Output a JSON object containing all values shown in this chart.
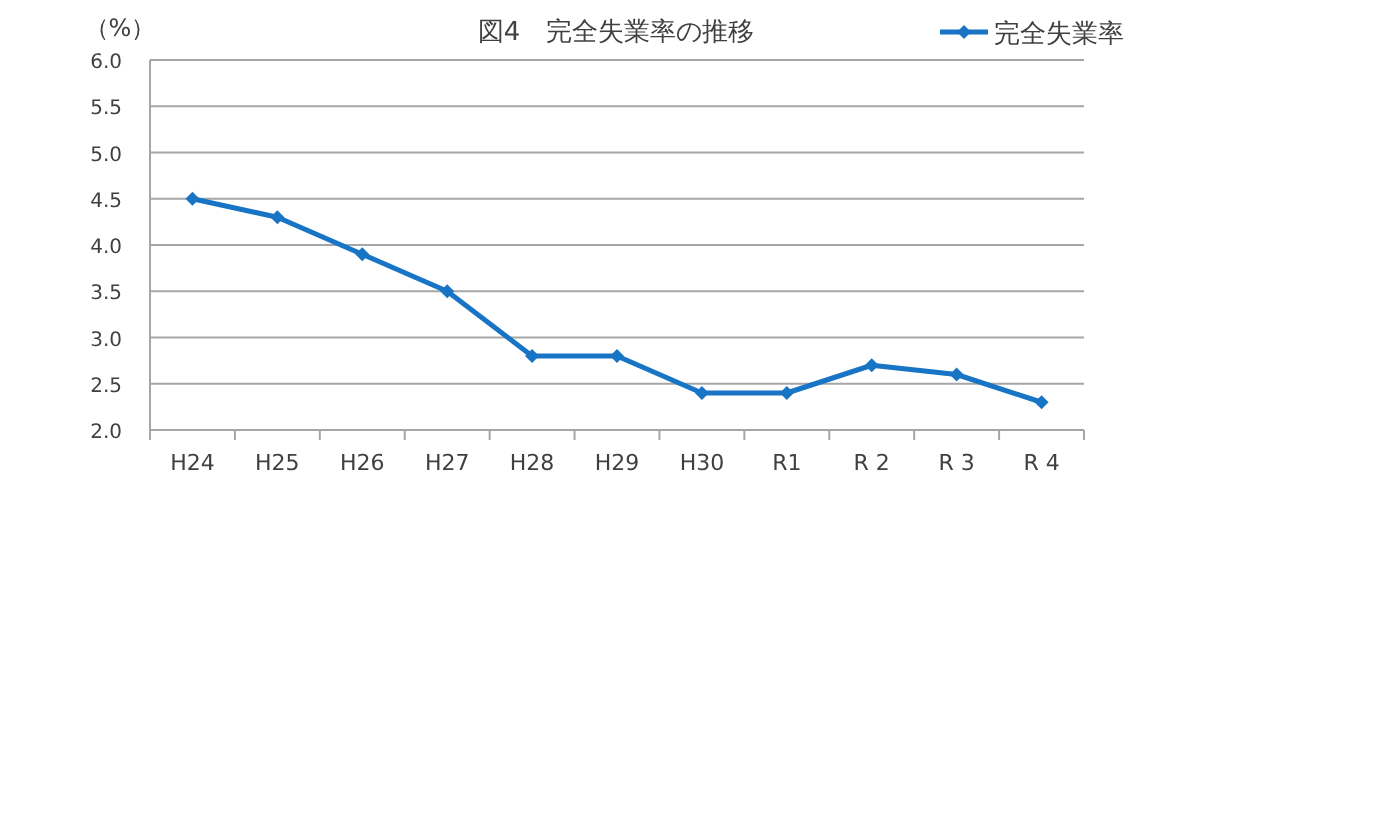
{
  "chart_data": {
    "type": "line",
    "title": "図4　完全失業率の推移",
    "ylabel": "（%）",
    "categories": [
      "H24",
      "H25",
      "H26",
      "H27",
      "H28",
      "H29",
      "H30",
      "R1",
      "R 2",
      "R 3",
      "R 4"
    ],
    "series": [
      {
        "name": "完全失業率",
        "color": "#1874c4",
        "values": [
          4.5,
          4.3,
          3.9,
          3.5,
          2.8,
          2.8,
          2.4,
          2.4,
          2.7,
          2.6,
          2.3
        ]
      }
    ],
    "ylim": [
      2,
      6
    ],
    "yticks": [
      {
        "value": 2,
        "label": "2.0"
      },
      {
        "value": 2.5,
        "label": "2.5"
      },
      {
        "value": 3,
        "label": "3.0"
      },
      {
        "value": 3.5,
        "label": "3.5"
      },
      {
        "value": 4,
        "label": "4.0"
      },
      {
        "value": 4.5,
        "label": "4.5"
      },
      {
        "value": 5,
        "label": "5.0"
      },
      {
        "value": 5.5,
        "label": "5.5"
      },
      {
        "value": 6,
        "label": "6.0"
      }
    ],
    "grid": "y",
    "legend": "top right",
    "marker": "diamond",
    "line_style": "solid"
  }
}
